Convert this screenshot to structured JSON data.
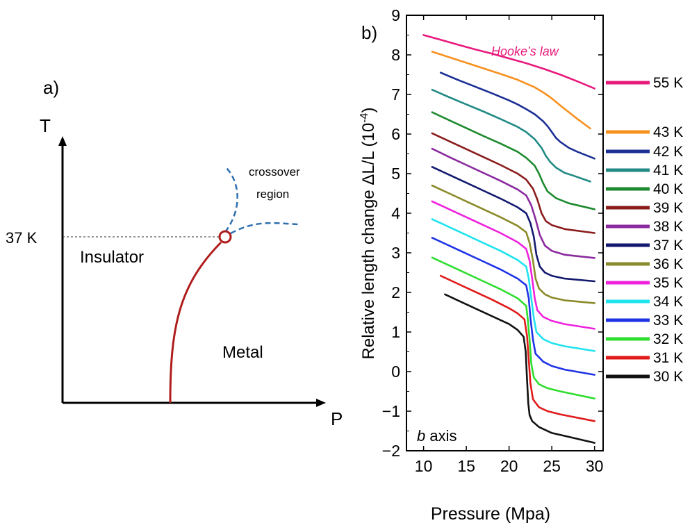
{
  "panel_a": {
    "label": "a)",
    "y_axis_label": "T",
    "x_axis_label": "P",
    "transition_label": "37 K",
    "insulator_label": "Insulator",
    "metal_label": "Metal",
    "crossover_label_line1": "crossover",
    "crossover_label_line2": "region",
    "colors": {
      "transition_line": "#b01c1c",
      "crossover": "#2f6fb0",
      "axis": "#000000"
    }
  },
  "chart_data": {
    "type": "line",
    "panel_label": "b)",
    "xlabel": "Pressure (Mpa)",
    "ylabel_main": "Relative length change ΔL/L (10",
    "ylabel_sup": "-4",
    "ylabel_end": ")",
    "xlim": [
      8,
      31
    ],
    "ylim": [
      -2,
      9
    ],
    "xticks": [
      "10",
      "15",
      "20",
      "25",
      "30"
    ],
    "yticks": [
      "-2",
      "-1",
      "0",
      "1",
      "2",
      "3",
      "4",
      "5",
      "6",
      "7",
      "8",
      "9"
    ],
    "annotation_hooke": "Hooke’s law",
    "annotation_axis_italic": "b",
    "annotation_axis_rest": " axis",
    "series": [
      {
        "name": "55 K",
        "color": "#e8197c",
        "x": [
          10,
          12,
          14,
          16,
          18,
          20,
          22,
          24,
          26,
          28,
          30
        ],
        "y": [
          8.5,
          8.38,
          8.26,
          8.14,
          8.03,
          7.91,
          7.79,
          7.65,
          7.5,
          7.33,
          7.15
        ]
      },
      {
        "name": "43 K",
        "color": "#f7901e",
        "x": [
          11,
          13,
          15,
          17,
          19,
          21,
          23,
          24,
          25,
          26,
          27,
          28,
          29.5
        ],
        "y": [
          8.08,
          7.94,
          7.8,
          7.66,
          7.52,
          7.37,
          7.18,
          7.05,
          6.9,
          6.72,
          6.55,
          6.38,
          6.14
        ]
      },
      {
        "name": "42 K",
        "color": "#1c2f94",
        "x": [
          12,
          14,
          16,
          18,
          20,
          21,
          22,
          23,
          24,
          24.5,
          25,
          25.5,
          26,
          27,
          28,
          30
        ],
        "y": [
          7.55,
          7.37,
          7.2,
          7.03,
          6.85,
          6.75,
          6.63,
          6.5,
          6.32,
          6.2,
          6.05,
          5.9,
          5.8,
          5.65,
          5.55,
          5.38
        ]
      },
      {
        "name": "41 K",
        "color": "#218a85",
        "x": [
          11,
          13,
          15,
          17,
          19,
          21,
          22,
          23,
          23.8,
          24.3,
          24.8,
          25.5,
          26.5,
          27.5,
          29.5
        ],
        "y": [
          7.12,
          6.93,
          6.75,
          6.57,
          6.38,
          6.18,
          6.05,
          5.87,
          5.65,
          5.45,
          5.3,
          5.15,
          5.02,
          4.95,
          4.8
        ]
      },
      {
        "name": "40 K",
        "color": "#1e8a2f",
        "x": [
          11,
          13,
          15,
          17,
          19,
          21,
          22,
          23,
          23.5,
          24,
          24.5,
          25.5,
          27,
          30
        ],
        "y": [
          6.55,
          6.35,
          6.15,
          5.95,
          5.76,
          5.55,
          5.4,
          5.2,
          5.0,
          4.75,
          4.55,
          4.38,
          4.25,
          4.1
        ]
      },
      {
        "name": "39 K",
        "color": "#8a1c1c",
        "x": [
          11,
          13,
          15,
          17,
          19,
          21,
          22,
          22.8,
          23.3,
          23.8,
          24.3,
          25,
          26.5,
          30
        ],
        "y": [
          6.02,
          5.82,
          5.62,
          5.42,
          5.22,
          5.0,
          4.85,
          4.62,
          4.35,
          4.0,
          3.8,
          3.7,
          3.6,
          3.5
        ]
      },
      {
        "name": "38 K",
        "color": "#8a2a9e",
        "x": [
          11,
          13,
          15,
          17,
          19,
          21,
          22,
          22.6,
          23.1,
          23.6,
          24.2,
          25,
          26.5,
          30
        ],
        "y": [
          5.63,
          5.42,
          5.22,
          5.02,
          4.82,
          4.6,
          4.45,
          4.2,
          3.85,
          3.45,
          3.18,
          3.05,
          2.95,
          2.87
        ]
      },
      {
        "name": "37 K",
        "color": "#12196e",
        "x": [
          11,
          13,
          15,
          17,
          19,
          21,
          22,
          22.5,
          22.9,
          23.2,
          23.6,
          24.2,
          25,
          26.5,
          30
        ],
        "y": [
          5.17,
          4.97,
          4.77,
          4.57,
          4.37,
          4.15,
          4.0,
          3.75,
          3.4,
          2.95,
          2.65,
          2.5,
          2.42,
          2.35,
          2.28
        ]
      },
      {
        "name": "36 K",
        "color": "#8a8a2a",
        "x": [
          11,
          13,
          15,
          17,
          19,
          21,
          22,
          22.4,
          22.8,
          23.1,
          23.5,
          24.2,
          25,
          26.5,
          30
        ],
        "y": [
          4.7,
          4.5,
          4.3,
          4.1,
          3.9,
          3.68,
          3.52,
          3.25,
          2.8,
          2.35,
          2.1,
          1.95,
          1.87,
          1.8,
          1.73
        ]
      },
      {
        "name": "35 K",
        "color": "#ee22dd",
        "x": [
          11,
          13,
          15,
          17,
          19,
          21,
          22,
          22.4,
          22.7,
          23.0,
          23.3,
          24,
          25,
          26.5,
          30
        ],
        "y": [
          4.3,
          4.1,
          3.9,
          3.7,
          3.5,
          3.27,
          3.1,
          2.8,
          2.35,
          1.85,
          1.55,
          1.38,
          1.28,
          1.2,
          1.08
        ]
      },
      {
        "name": "34 K",
        "color": "#1fe3ef",
        "x": [
          11,
          13,
          15,
          17,
          19,
          21,
          22,
          22.3,
          22.6,
          22.9,
          23.2,
          24,
          25,
          26.5,
          30
        ],
        "y": [
          3.85,
          3.65,
          3.45,
          3.25,
          3.05,
          2.82,
          2.65,
          2.35,
          1.85,
          1.35,
          1.0,
          0.82,
          0.72,
          0.64,
          0.52
        ]
      },
      {
        "name": "33 K",
        "color": "#1f33e6",
        "x": [
          11,
          13,
          15,
          17,
          19,
          21,
          22,
          22.3,
          22.5,
          22.8,
          23.1,
          24,
          25,
          26.5,
          30
        ],
        "y": [
          3.38,
          3.18,
          2.98,
          2.78,
          2.58,
          2.35,
          2.18,
          1.85,
          1.35,
          0.8,
          0.45,
          0.25,
          0.14,
          0.05,
          -0.08
        ]
      },
      {
        "name": "32 K",
        "color": "#2fdd2f",
        "x": [
          11,
          13,
          15,
          17,
          19,
          21,
          22,
          22.2,
          22.4,
          22.6,
          22.9,
          23.5,
          24.5,
          26,
          30
        ],
        "y": [
          2.88,
          2.68,
          2.48,
          2.28,
          2.08,
          1.85,
          1.66,
          1.3,
          0.8,
          0.2,
          -0.15,
          -0.32,
          -0.42,
          -0.5,
          -0.68
        ]
      },
      {
        "name": "31 K",
        "color": "#e01a1a",
        "x": [
          12,
          14,
          16,
          18,
          20,
          21,
          21.8,
          22.1,
          22.3,
          22.5,
          22.8,
          23.5,
          24.5,
          26,
          30
        ],
        "y": [
          2.42,
          2.22,
          2.02,
          1.82,
          1.6,
          1.47,
          1.32,
          0.9,
          0.3,
          -0.3,
          -0.7,
          -0.9,
          -1.0,
          -1.08,
          -1.25
        ]
      },
      {
        "name": "30 K",
        "color": "#111111",
        "x": [
          12.5,
          14,
          16,
          18,
          20,
          21,
          21.7,
          21.95,
          22.1,
          22.25,
          22.4,
          22.7,
          23.5,
          25,
          27,
          30
        ],
        "y": [
          1.95,
          1.8,
          1.6,
          1.4,
          1.2,
          1.05,
          0.88,
          0.5,
          -0.2,
          -0.8,
          -1.1,
          -1.25,
          -1.4,
          -1.55,
          -1.65,
          -1.8
        ]
      }
    ]
  }
}
